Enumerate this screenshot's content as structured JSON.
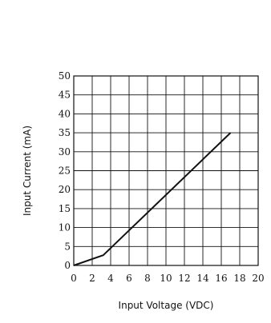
{
  "chart_data": {
    "type": "line",
    "title": "",
    "xlabel": "Input Voltage (VDC)",
    "ylabel": "Input Current (mA)",
    "xlim": [
      0,
      20
    ],
    "ylim": [
      0,
      50
    ],
    "x_ticks": [
      0,
      2,
      4,
      6,
      8,
      10,
      12,
      14,
      16,
      18,
      20
    ],
    "y_ticks": [
      0,
      5,
      10,
      15,
      20,
      25,
      30,
      35,
      40,
      45,
      50
    ],
    "x_tick_labels": [
      "0",
      "2",
      "4",
      "6",
      "8",
      "10",
      "12",
      "14",
      "16",
      "18",
      "20"
    ],
    "y_tick_labels": [
      "0",
      "5",
      "10",
      "15",
      "20",
      "25",
      "30",
      "35",
      "40",
      "45",
      "50"
    ],
    "grid": true,
    "series": [
      {
        "x": [
          0,
          3.2,
          17
        ],
        "y": [
          0,
          2.7,
          35
        ]
      }
    ],
    "line_color": "#111111",
    "grid_color": "#111111"
  }
}
